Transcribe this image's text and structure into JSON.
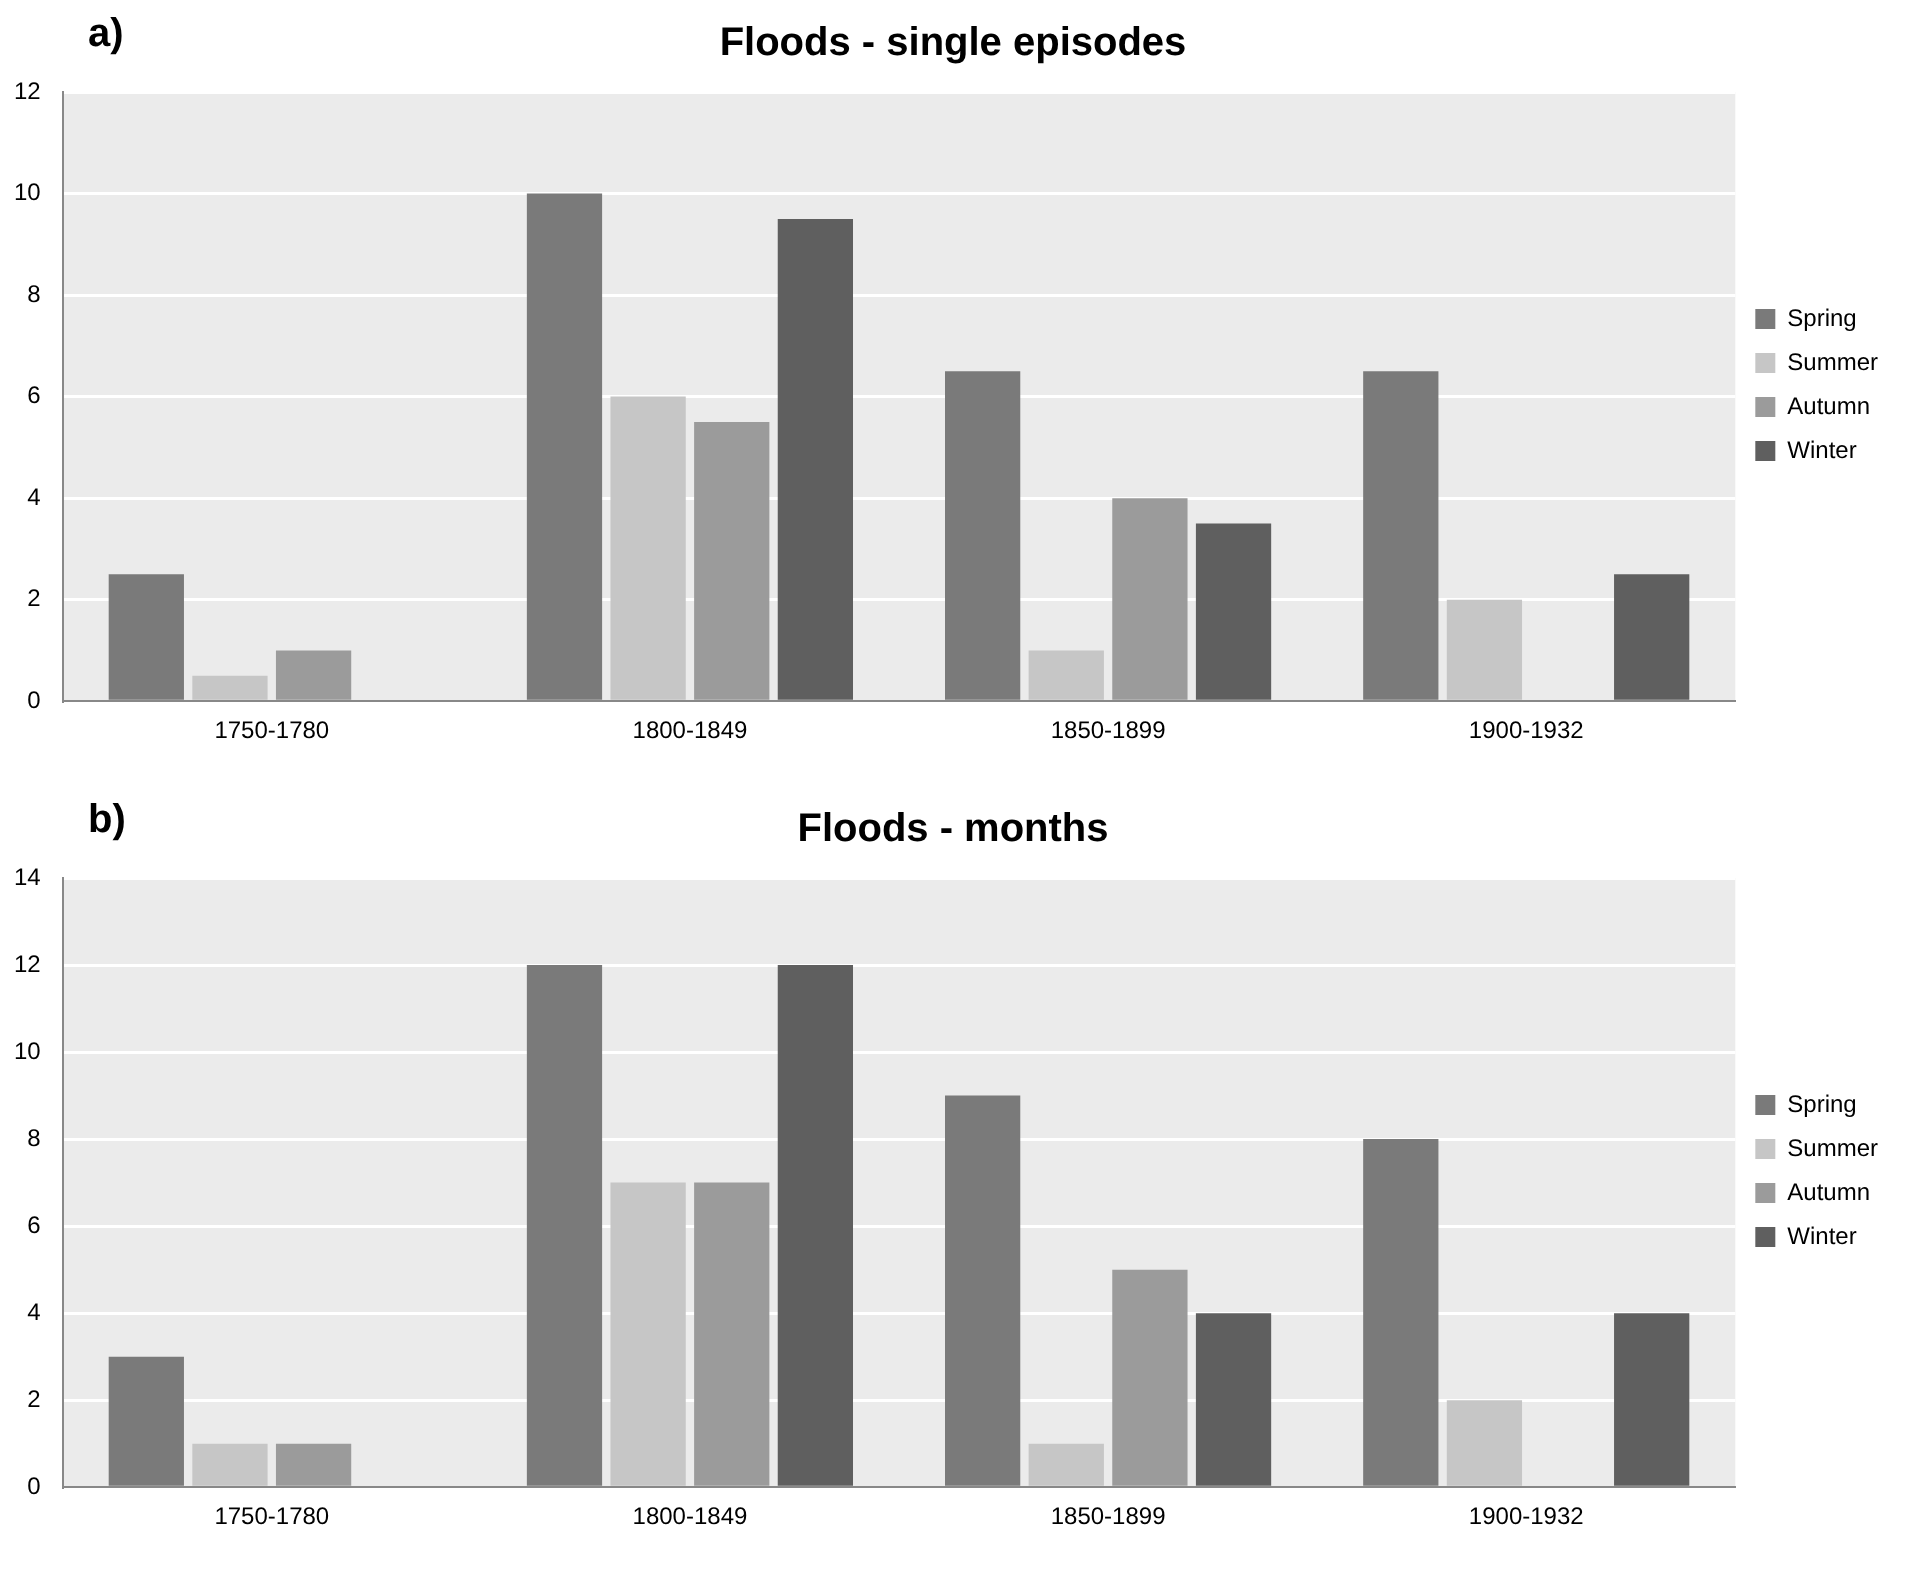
{
  "chart_data": [
    {
      "type": "bar",
      "title": "Floods - single episodes",
      "annotations": [
        "a)"
      ],
      "categories": [
        "1750-1780",
        "1800-1849",
        "1850-1899",
        "1900-1932"
      ],
      "series": [
        {
          "name": "Spring",
          "color": "#7a7a7a",
          "values": [
            2.5,
            10,
            6.5,
            6.5
          ]
        },
        {
          "name": "Summer",
          "color": "#c6c6c6",
          "values": [
            0.5,
            6,
            1,
            2
          ]
        },
        {
          "name": "Autumn",
          "color": "#9b9b9b",
          "values": [
            1,
            5.5,
            4,
            0
          ]
        },
        {
          "name": "Winter",
          "color": "#5f5f5f",
          "values": [
            0,
            9.5,
            3.5,
            2.5
          ]
        }
      ],
      "ylim": [
        0,
        12
      ],
      "yticks": [
        0,
        2,
        4,
        6,
        8,
        10,
        12
      ],
      "grid": "y",
      "legend": "right"
    },
    {
      "type": "bar",
      "title": "Floods - months",
      "annotations": [
        "b)"
      ],
      "categories": [
        "1750-1780",
        "1800-1849",
        "1850-1899",
        "1900-1932"
      ],
      "series": [
        {
          "name": "Spring",
          "color": "#7a7a7a",
          "values": [
            3,
            12,
            9,
            8
          ]
        },
        {
          "name": "Summer",
          "color": "#c6c6c6",
          "values": [
            1,
            7,
            1,
            2
          ]
        },
        {
          "name": "Autumn",
          "color": "#9b9b9b",
          "values": [
            1,
            7,
            5,
            0
          ]
        },
        {
          "name": "Winter",
          "color": "#5f5f5f",
          "values": [
            0,
            12,
            4,
            4
          ]
        }
      ],
      "ylim": [
        0,
        14
      ],
      "yticks": [
        0,
        2,
        4,
        6,
        8,
        10,
        12,
        14
      ],
      "grid": "y",
      "legend": "right"
    }
  ]
}
